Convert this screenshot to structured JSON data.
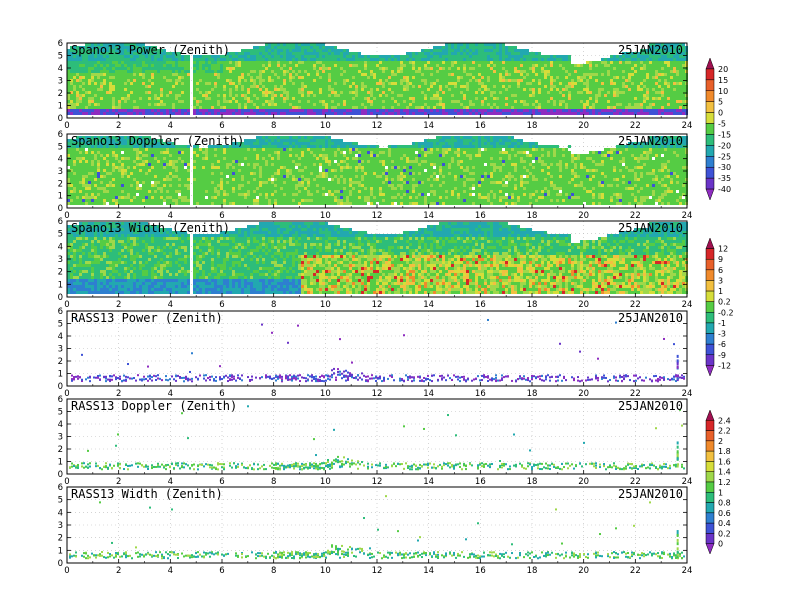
{
  "chart_data": [
    {
      "type": "heatmap",
      "title": "Spano13 Power (Zenith)",
      "date": "25JAN2010",
      "xlim": [
        0,
        24
      ],
      "ylim": [
        0,
        6
      ],
      "x_ticks": [
        "0",
        "2",
        "4",
        "6",
        "8",
        "10",
        "12",
        "14",
        "16",
        "18",
        "20",
        "22",
        "24"
      ],
      "y_ticks": [
        "0",
        "1",
        "2",
        "3",
        "4",
        "5",
        "6"
      ],
      "colorbar": "cb1",
      "dominant_value": -10,
      "data_gap_hours": [
        4.8
      ],
      "coverage": "dense"
    },
    {
      "type": "heatmap",
      "title": "Spano13 Doppler (Zenith)",
      "date": "25JAN2010",
      "xlim": [
        0,
        24
      ],
      "ylim": [
        0,
        6
      ],
      "x_ticks": [
        "0",
        "2",
        "4",
        "6",
        "8",
        "10",
        "12",
        "14",
        "16",
        "18",
        "20",
        "22",
        "24"
      ],
      "y_ticks": [
        "0",
        "1",
        "2",
        "3",
        "4",
        "5",
        "6"
      ],
      "dominant_value": 0.8,
      "data_gap_hours": [
        4.8
      ],
      "coverage": "dense"
    },
    {
      "type": "heatmap",
      "title": "Spano13 Width (Zenith)",
      "date": "25JAN2010",
      "xlim": [
        0,
        24
      ],
      "ylim": [
        0,
        6
      ],
      "x_ticks": [
        "0",
        "2",
        "4",
        "6",
        "8",
        "10",
        "12",
        "14",
        "16",
        "18",
        "20",
        "22",
        "24"
      ],
      "y_ticks": [
        "0",
        "1",
        "2",
        "3",
        "4",
        "5",
        "6"
      ],
      "colorbar": "cb2",
      "dominant_value": 0.9,
      "data_gap_hours": [
        4.8
      ],
      "coverage": "dense"
    },
    {
      "type": "heatmap",
      "title": "RASS13 Power (Zenith)",
      "date": "25JAN2010",
      "xlim": [
        0,
        24
      ],
      "ylim": [
        0,
        6
      ],
      "x_ticks": [
        "0",
        "2",
        "4",
        "6",
        "8",
        "10",
        "12",
        "14",
        "16",
        "18",
        "20",
        "22",
        "24"
      ],
      "y_ticks": [
        "0",
        "1",
        "2",
        "3",
        "4",
        "5",
        "6"
      ],
      "dominant_value": -11,
      "coverage": "sparse, concentrated 0.5–1 km"
    },
    {
      "type": "heatmap",
      "title": "RASS13 Doppler (Zenith)",
      "date": "25JAN2010",
      "xlim": [
        0,
        24
      ],
      "ylim": [
        0,
        6
      ],
      "x_ticks": [
        "0",
        "2",
        "4",
        "6",
        "8",
        "10",
        "12",
        "14",
        "16",
        "18",
        "20",
        "22",
        "24"
      ],
      "y_ticks": [
        "0",
        "1",
        "2",
        "3",
        "4",
        "5",
        "6"
      ],
      "colorbar": "cb3",
      "dominant_value": 1.2,
      "coverage": "sparse, concentrated 0.5–1 km"
    },
    {
      "type": "heatmap",
      "title": "RASS13 Width (Zenith)",
      "date": "25JAN2010",
      "xlim": [
        0,
        24
      ],
      "ylim": [
        0,
        6
      ],
      "x_ticks": [
        "0",
        "2",
        "4",
        "6",
        "8",
        "10",
        "12",
        "14",
        "16",
        "18",
        "20",
        "22",
        "24"
      ],
      "y_ticks": [
        "0",
        "1",
        "2",
        "3",
        "4",
        "5",
        "6"
      ],
      "dominant_value": 0.9,
      "coverage": "sparse, concentrated 0.5–1 km"
    }
  ],
  "colorbars": {
    "cb1": {
      "labels": [
        "20",
        "15",
        "10",
        "5",
        "0",
        "-5",
        "-15",
        "-20",
        "-25",
        "-30",
        "-35",
        "-40"
      ],
      "colors": [
        "#a01050",
        "#d62728",
        "#e8602a",
        "#f08a2c",
        "#f2c040",
        "#d6dd3a",
        "#9fd84a",
        "#55cc44",
        "#2dbd7a",
        "#22a8b0",
        "#2e7fd0",
        "#3e52d6",
        "#6a34c8",
        "#8e2cc0"
      ]
    },
    "cb2": {
      "labels": [
        "12",
        "9",
        "6",
        "3",
        "1",
        "0.2",
        "-0.2",
        "-1",
        "-3",
        "-6",
        "-9",
        "-12"
      ],
      "colors": [
        "#a01050",
        "#d62728",
        "#e8602a",
        "#f08a2c",
        "#f2c040",
        "#d6dd3a",
        "#9fd84a",
        "#55cc44",
        "#2dbd7a",
        "#22a8b0",
        "#2e7fd0",
        "#3e52d6",
        "#6a34c8",
        "#8e2cc0"
      ]
    },
    "cb3": {
      "labels": [
        "2.4",
        "2.2",
        "2",
        "1.8",
        "1.6",
        "1.4",
        "1.2",
        "1",
        "0.8",
        "0.6",
        "0.4",
        "0.2",
        "0"
      ],
      "colors": [
        "#a01050",
        "#d62728",
        "#e8602a",
        "#f08a2c",
        "#f2c040",
        "#d6dd3a",
        "#9fd84a",
        "#55cc44",
        "#2dbd7a",
        "#22a8b0",
        "#2e7fd0",
        "#3e52d6",
        "#6a34c8",
        "#8e2cc0"
      ]
    }
  }
}
